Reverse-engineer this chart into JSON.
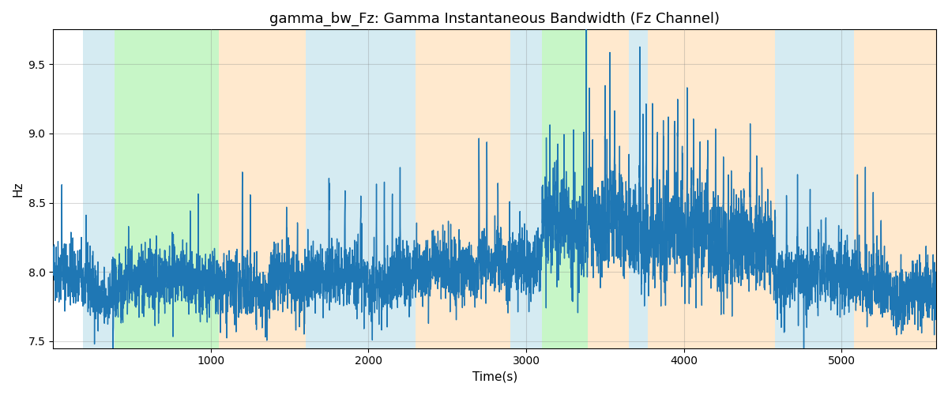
{
  "title": "gamma_bw_Fz: Gamma Instantaneous Bandwidth (Fz Channel)",
  "xlabel": "Time(s)",
  "ylabel": "Hz",
  "xlim": [
    0,
    5600
  ],
  "ylim": [
    7.45,
    9.75
  ],
  "yticks": [
    7.5,
    8.0,
    8.5,
    9.0,
    9.5
  ],
  "xticks": [
    1000,
    2000,
    3000,
    4000,
    5000
  ],
  "line_color": "#1f77b4",
  "line_width": 1.0,
  "seed": 42,
  "colored_regions": [
    {
      "xmin": 190,
      "xmax": 390,
      "color": "#add8e6",
      "alpha": 0.5
    },
    {
      "xmin": 390,
      "xmax": 1050,
      "color": "#90ee90",
      "alpha": 0.5
    },
    {
      "xmin": 1050,
      "xmax": 1600,
      "color": "#ffd59e",
      "alpha": 0.5
    },
    {
      "xmin": 1600,
      "xmax": 1800,
      "color": "#add8e6",
      "alpha": 0.5
    },
    {
      "xmin": 1800,
      "xmax": 2050,
      "color": "#add8e6",
      "alpha": 0.5
    },
    {
      "xmin": 2050,
      "xmax": 2300,
      "color": "#add8e6",
      "alpha": 0.5
    },
    {
      "xmin": 2300,
      "xmax": 2530,
      "color": "#ffd59e",
      "alpha": 0.5
    },
    {
      "xmin": 2530,
      "xmax": 2900,
      "color": "#ffd59e",
      "alpha": 0.5
    },
    {
      "xmin": 2900,
      "xmax": 3020,
      "color": "#add8e6",
      "alpha": 0.5
    },
    {
      "xmin": 3020,
      "xmax": 3100,
      "color": "#add8e6",
      "alpha": 0.5
    },
    {
      "xmin": 3100,
      "xmax": 3390,
      "color": "#90ee90",
      "alpha": 0.5
    },
    {
      "xmin": 3390,
      "xmax": 3650,
      "color": "#ffd59e",
      "alpha": 0.5
    },
    {
      "xmin": 3650,
      "xmax": 3770,
      "color": "#add8e6",
      "alpha": 0.5
    },
    {
      "xmin": 3770,
      "xmax": 4580,
      "color": "#ffd59e",
      "alpha": 0.5
    },
    {
      "xmin": 4580,
      "xmax": 5080,
      "color": "#add8e6",
      "alpha": 0.5
    },
    {
      "xmin": 5080,
      "xmax": 5600,
      "color": "#ffd59e",
      "alpha": 0.5
    }
  ],
  "bg_color": "white",
  "grid_color": "gray",
  "grid_alpha": 0.3,
  "title_fontsize": 13,
  "axis_fontsize": 11
}
